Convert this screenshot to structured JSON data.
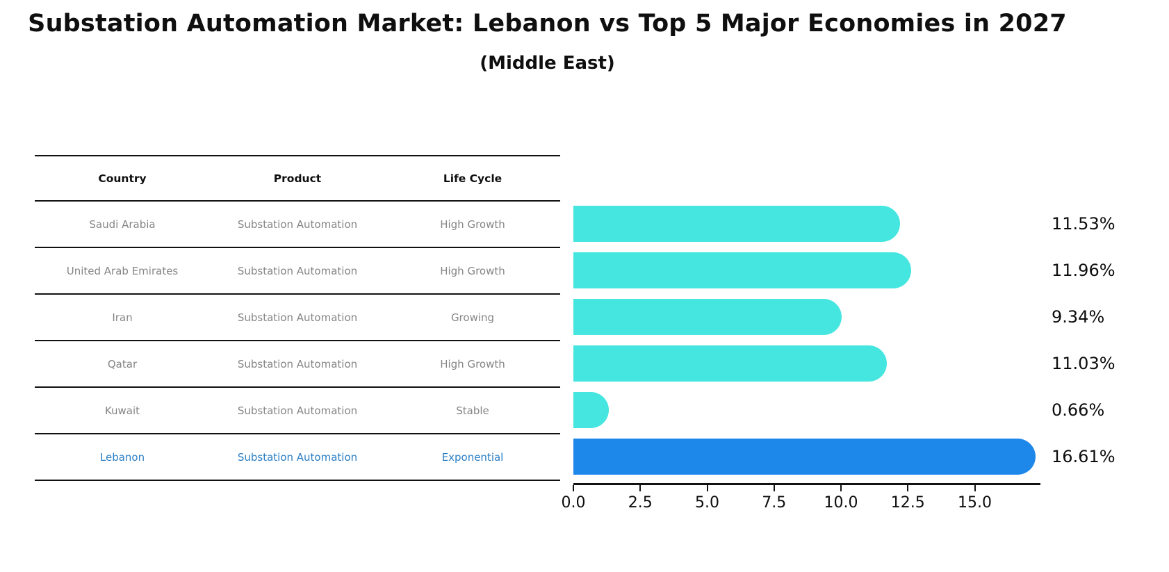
{
  "header": {
    "title": "Substation Automation Market: Lebanon vs Top 5 Major Economies in 2027",
    "subtitle": "(Middle East)"
  },
  "table": {
    "columns": [
      "Country",
      "Product",
      "Life Cycle"
    ],
    "rows": [
      {
        "country": "Saudi Arabia",
        "product": "Substation Automation",
        "life_cycle": "High Growth",
        "highlight": false
      },
      {
        "country": "United Arab Emirates",
        "product": "Substation Automation",
        "life_cycle": "High Growth",
        "highlight": false
      },
      {
        "country": "Iran",
        "product": "Substation Automation",
        "life_cycle": "Growing",
        "highlight": false
      },
      {
        "country": "Qatar",
        "product": "Substation Automation",
        "life_cycle": "High Growth",
        "highlight": false
      },
      {
        "country": "Kuwait",
        "product": "Substation Automation",
        "life_cycle": "Stable",
        "highlight": false
      },
      {
        "country": "Lebanon",
        "product": "Substation Automation",
        "life_cycle": "Exponential",
        "highlight": true
      }
    ]
  },
  "chart_data": {
    "type": "bar",
    "orientation": "horizontal",
    "title": "Substation Automation Market: Lebanon vs Top 5 Major Economies in 2027",
    "subtitle": "(Middle East)",
    "categories": [
      "Saudi Arabia",
      "United Arab Emirates",
      "Iran",
      "Qatar",
      "Kuwait",
      "Lebanon"
    ],
    "values": [
      11.53,
      11.96,
      9.34,
      11.03,
      0.66,
      16.61
    ],
    "value_labels": [
      "11.53%",
      "11.96%",
      "9.34%",
      "11.03%",
      "0.66%",
      "16.61%"
    ],
    "x_ticks": [
      0.0,
      2.5,
      5.0,
      7.5,
      10.0,
      12.5,
      15.0
    ],
    "x_tick_labels": [
      "0.0",
      "2.5",
      "5.0",
      "7.5",
      "10.0",
      "12.5",
      "15.0"
    ],
    "xlim": [
      0,
      17.3
    ],
    "grid": false,
    "legend": false,
    "highlight_index": 5,
    "bar_color": "#45e6e0",
    "highlight_color": "#1e87ea",
    "highlight_text_color": "#2b7fc4"
  }
}
